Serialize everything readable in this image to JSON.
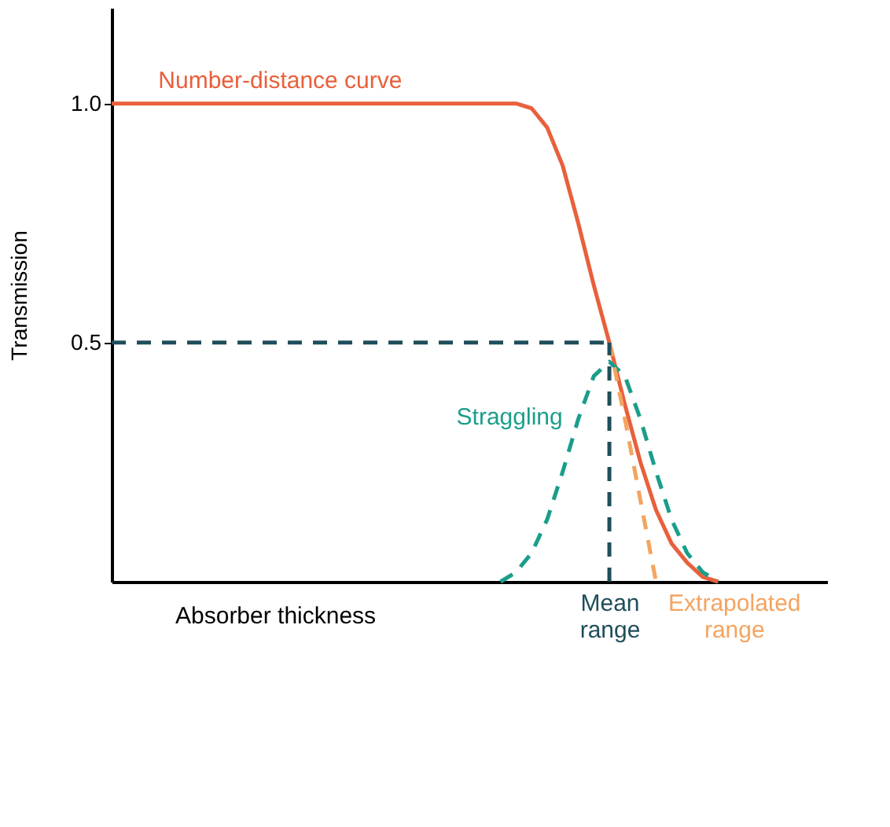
{
  "chart_data": {
    "type": "line",
    "xlabel": "Absorber thickness",
    "ylabel": "Transmission",
    "categories": [
      null,
      null,
      null,
      null,
      null,
      null,
      null,
      null,
      null,
      null,
      null,
      null,
      null,
      null,
      null,
      null,
      null,
      null,
      null,
      null,
      null,
      null,
      null,
      null,
      null,
      null,
      null,
      null,
      null,
      null,
      null,
      null,
      "Mean range",
      null,
      null,
      null,
      null,
      null,
      null,
      null,
      "Extrapolated range",
      null,
      null,
      null,
      null,
      null,
      null
    ],
    "ylim": [
      0,
      1.2
    ],
    "yticks": [
      {
        "value": 0.5,
        "label": "0.5"
      },
      {
        "value": 1.0,
        "label": "1.0"
      }
    ],
    "grid": false,
    "series": [
      {
        "name": "Number-distance curve",
        "color": "#e8603c",
        "line_style": "solid",
        "values": [
          1.0,
          1.0,
          1.0,
          1.0,
          1.0,
          1.0,
          1.0,
          1.0,
          1.0,
          1.0,
          1.0,
          1.0,
          1.0,
          1.0,
          1.0,
          1.0,
          1.0,
          1.0,
          1.0,
          1.0,
          1.0,
          1.0,
          1.0,
          1.0,
          1.0,
          1.0,
          1.0,
          0.99,
          0.95,
          0.87,
          0.75,
          0.62,
          0.5,
          0.37,
          0.25,
          0.15,
          0.08,
          0.04,
          0.01,
          0.0,
          null,
          null,
          null,
          null,
          null,
          null,
          null
        ]
      },
      {
        "name": "Straggling",
        "color": "#1a9e8a",
        "line_style": "dashed",
        "values": [
          null,
          null,
          null,
          null,
          null,
          null,
          null,
          null,
          null,
          null,
          null,
          null,
          null,
          null,
          null,
          null,
          null,
          null,
          null,
          null,
          null,
          null,
          null,
          null,
          null,
          0.0,
          0.02,
          0.06,
          0.13,
          0.23,
          0.34,
          0.43,
          0.46,
          0.43,
          0.34,
          0.23,
          0.13,
          0.06,
          0.02,
          0.0,
          null,
          null,
          null,
          null,
          null,
          null,
          null
        ]
      },
      {
        "color": "#f4a460",
        "line_style": "dashed",
        "values": [
          null,
          null,
          null,
          null,
          null,
          null,
          null,
          null,
          null,
          null,
          null,
          null,
          null,
          null,
          null,
          null,
          null,
          null,
          null,
          null,
          null,
          null,
          null,
          null,
          null,
          null,
          null,
          null,
          null,
          null,
          null,
          null,
          0.5,
          0.34,
          0.17,
          0.0,
          null,
          null,
          null,
          null,
          null,
          null,
          null,
          null,
          null,
          null,
          null
        ]
      }
    ],
    "ref_lines": [
      {
        "axis": "y",
        "value": 0.5,
        "color": "#1f4e5a",
        "line_style": "dashed"
      },
      {
        "axis": "x",
        "value": "Mean range",
        "color": "#1f4e5a",
        "line_style": "dashed"
      }
    ]
  }
}
